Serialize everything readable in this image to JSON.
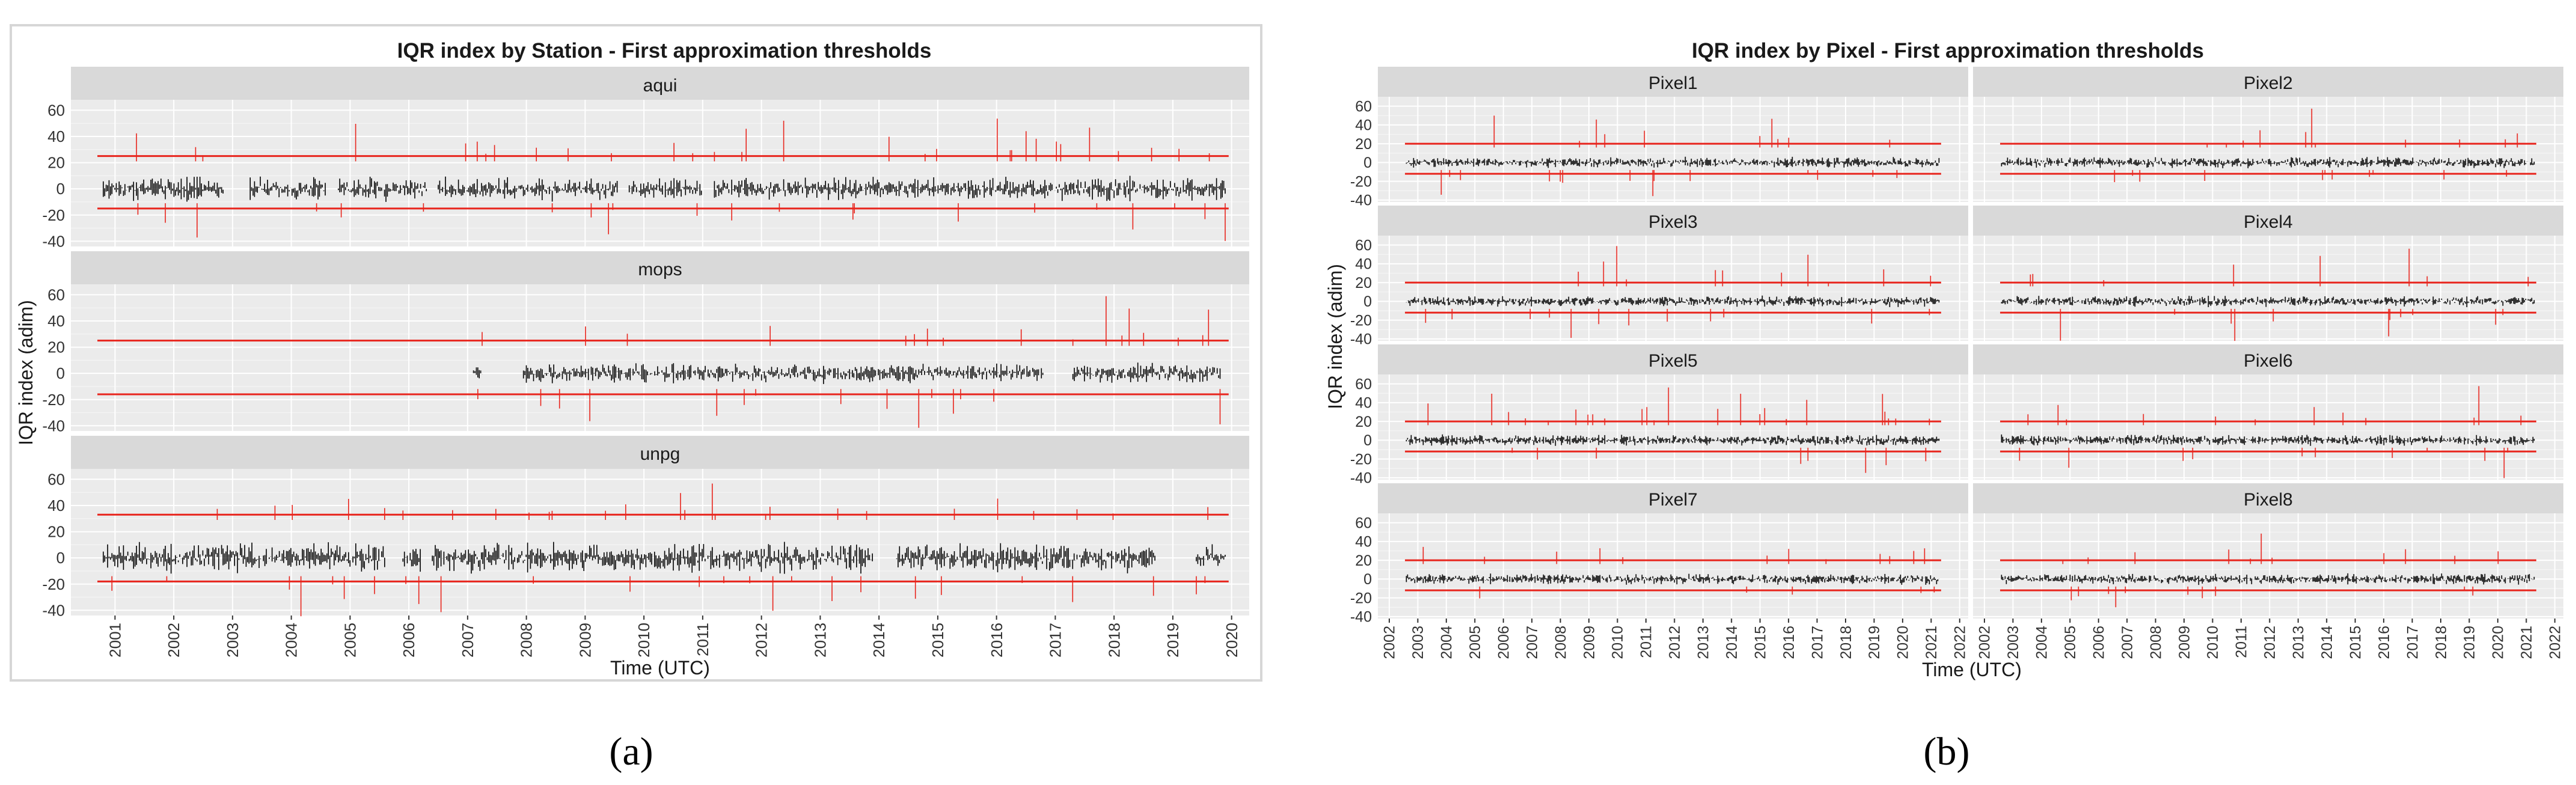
{
  "colors": {
    "panel_bg": "#ebebeb",
    "grid_major": "#ffffff",
    "grid_minor": "#f5f5f5",
    "strip_bg": "#d9d9d9",
    "signal": "#000000",
    "outlier": "#e8251d",
    "threshold": "#e8251d",
    "outer_frame": "#d6d6d6"
  },
  "chart_data": [
    {
      "id": "a",
      "type": "line",
      "title": "IQR index by  Station - First approximation thresholds",
      "xlabel": "Time (UTC)",
      "ylabel": "IQR index (adim)",
      "caption": "(a)",
      "xlim": [
        2000.25,
        2020.3
      ],
      "x_ticks": [
        2001,
        2002,
        2003,
        2004,
        2005,
        2006,
        2007,
        2008,
        2009,
        2010,
        2011,
        2012,
        2013,
        2014,
        2015,
        2016,
        2017,
        2018,
        2019,
        2020
      ],
      "ylim": [
        -44,
        68
      ],
      "y_ticks": [
        -40,
        -20,
        0,
        20,
        40,
        60
      ],
      "series": [
        {
          "name": "aqui",
          "upper_threshold": 25,
          "lower_threshold": -15,
          "noise": 8,
          "max_spike": 57,
          "segments": [
            [
              2000.8,
              2002.85
            ],
            [
              2003.3,
              2004.6
            ],
            [
              2004.8,
              2006.3
            ],
            [
              2006.5,
              2009.55
            ],
            [
              2009.75,
              2011.0
            ],
            [
              2011.2,
              2019.9
            ]
          ]
        },
        {
          "name": "mops",
          "upper_threshold": 25,
          "lower_threshold": -16,
          "noise": 7,
          "max_spike": 60,
          "segments": [
            [
              2007.1,
              2007.25
            ],
            [
              2007.95,
              2016.8
            ],
            [
              2017.3,
              2019.85
            ]
          ]
        },
        {
          "name": "unpg",
          "upper_threshold": 33,
          "lower_threshold": -18,
          "noise": 10,
          "max_spike": 57,
          "segments": [
            [
              2000.8,
              2005.6
            ],
            [
              2005.9,
              2006.2
            ],
            [
              2006.4,
              2013.9
            ],
            [
              2014.3,
              2018.7
            ],
            [
              2019.4,
              2019.9
            ]
          ]
        }
      ]
    },
    {
      "id": "b",
      "type": "line",
      "title": "IQR index by Pixel - First approximation thresholds",
      "xlabel": "Time (UTC)",
      "ylabel": "IQR index (adim)",
      "caption": "(b)",
      "xlim": [
        2001.6,
        2022.3
      ],
      "x_ticks": [
        2002,
        2003,
        2004,
        2005,
        2006,
        2007,
        2008,
        2009,
        2010,
        2011,
        2012,
        2013,
        2014,
        2015,
        2016,
        2017,
        2018,
        2019,
        2020,
        2021,
        2022
      ],
      "ylim": [
        -42,
        70
      ],
      "y_ticks": [
        -40,
        -20,
        0,
        20,
        40,
        60
      ],
      "layout_cols": 2,
      "series": [
        {
          "name": "Pixel1",
          "upper_threshold": 20,
          "lower_threshold": -12,
          "noise": 5,
          "max_spike": 62,
          "segments": [
            [
              2002.6,
              2021.3
            ]
          ]
        },
        {
          "name": "Pixel2",
          "upper_threshold": 20,
          "lower_threshold": -12,
          "noise": 5,
          "max_spike": 62,
          "segments": [
            [
              2002.6,
              2021.3
            ]
          ]
        },
        {
          "name": "Pixel3",
          "upper_threshold": 20,
          "lower_threshold": -12,
          "noise": 5,
          "max_spike": 62,
          "segments": [
            [
              2002.6,
              2021.3
            ]
          ]
        },
        {
          "name": "Pixel4",
          "upper_threshold": 20,
          "lower_threshold": -12,
          "noise": 5,
          "max_spike": 62,
          "segments": [
            [
              2002.6,
              2021.3
            ]
          ]
        },
        {
          "name": "Pixel5",
          "upper_threshold": 20,
          "lower_threshold": -12,
          "noise": 5,
          "max_spike": 62,
          "segments": [
            [
              2002.6,
              2021.3
            ]
          ]
        },
        {
          "name": "Pixel6",
          "upper_threshold": 20,
          "lower_threshold": -12,
          "noise": 5,
          "max_spike": 62,
          "segments": [
            [
              2002.6,
              2021.3
            ]
          ]
        },
        {
          "name": "Pixel7",
          "upper_threshold": 20,
          "lower_threshold": -12,
          "noise": 5,
          "max_spike": 62,
          "segments": [
            [
              2002.6,
              2021.3
            ]
          ]
        },
        {
          "name": "Pixel8",
          "upper_threshold": 20,
          "lower_threshold": -12,
          "noise": 5,
          "max_spike": 62,
          "segments": [
            [
              2002.6,
              2021.3
            ]
          ]
        }
      ]
    }
  ]
}
